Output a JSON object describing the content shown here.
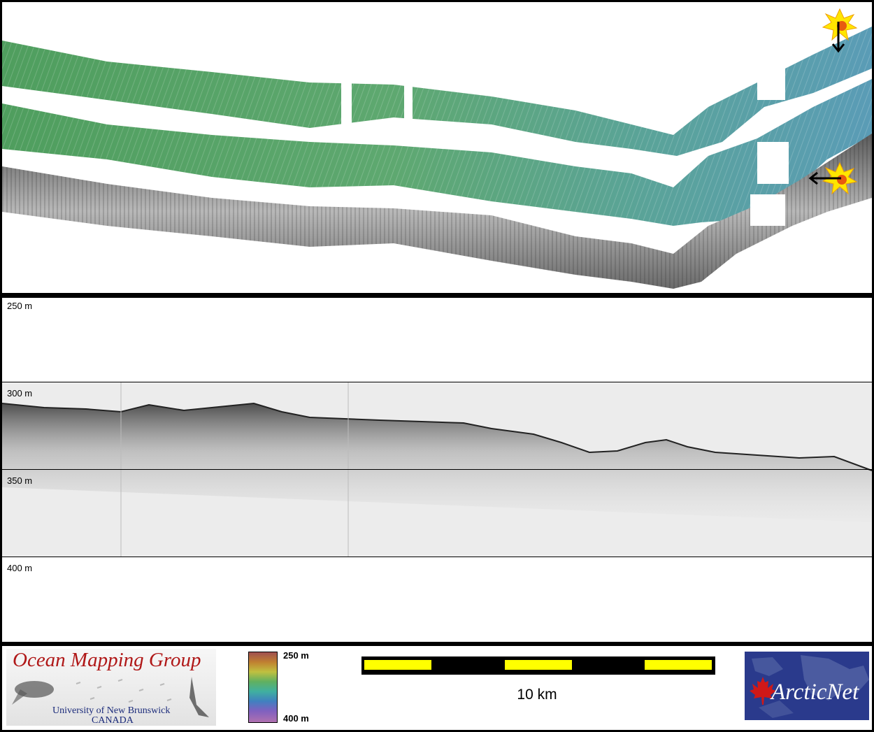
{
  "profile": {
    "depth_labels": [
      "250 m",
      "300 m",
      "350 m",
      "400 m"
    ]
  },
  "legend": {
    "logo_title": "Ocean Mapping Group",
    "logo_university": "University of New Brunswick",
    "logo_country": "CANADA",
    "colorbar_top": "250 m",
    "colorbar_bottom": "400 m",
    "scale_label": "10 km",
    "partner_logo": "ArcticNet"
  },
  "colors": {
    "scale_yellow": "#ffff00",
    "map_green": "#5aa86a",
    "map_teal": "#5aa0b0",
    "logo_red": "#b01818",
    "arcticnet_blue": "#2a3a8c"
  },
  "icons": [
    "explosion-icon",
    "arrow-down-icon",
    "arrow-left-icon",
    "maple-leaf-icon"
  ]
}
